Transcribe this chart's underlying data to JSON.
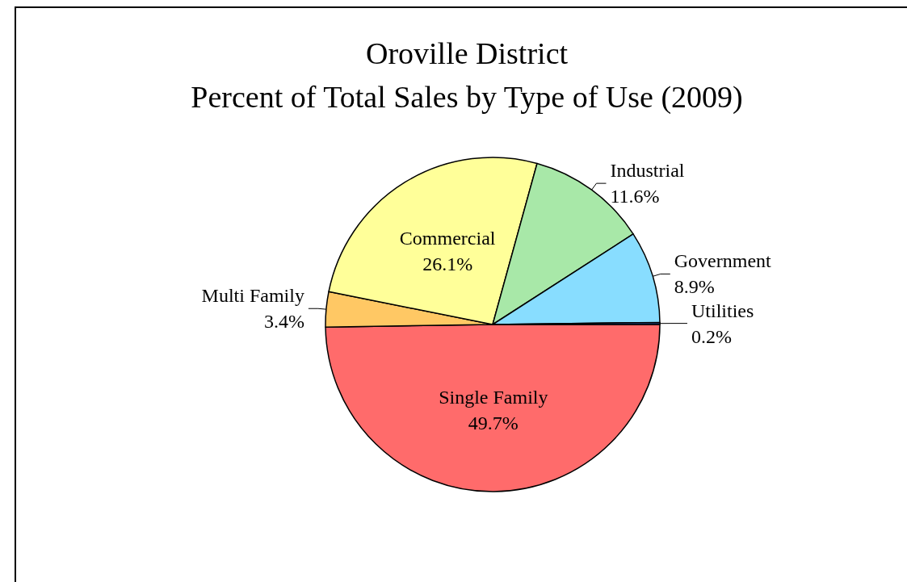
{
  "chart_data": {
    "type": "pie",
    "title": "Oroville District\nPercent of Total Sales by Type of Use (2009)",
    "categories": [
      "Single Family",
      "Multi Family",
      "Commercial",
      "Industrial",
      "Government",
      "Utilities"
    ],
    "values": [
      49.7,
      3.4,
      26.1,
      11.6,
      8.9,
      0.2
    ],
    "value_labels": [
      "49.7%",
      "3.4%",
      "26.1%",
      "11.6%",
      "8.9%",
      "0.2%"
    ],
    "colors": [
      "#ff6b6b",
      "#ffc864",
      "#ffff99",
      "#a8e8a8",
      "#88ddff",
      "#1f4e9a"
    ],
    "legend": false
  }
}
